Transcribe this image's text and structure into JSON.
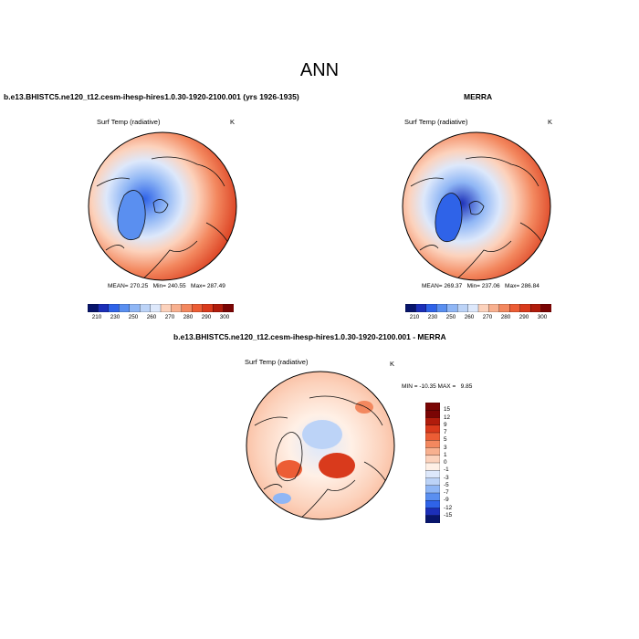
{
  "title": "ANN",
  "colors": {
    "diverging": [
      "#08156b",
      "#1c2fb8",
      "#2f63e8",
      "#5a8ff0",
      "#8fb6f5",
      "#bcd3f7",
      "#dde8fb",
      "#fff0e6",
      "#fcd2bc",
      "#f8b08f",
      "#f3885f",
      "#ec5d35",
      "#d93a1c",
      "#b01c0c",
      "#7a0504"
    ]
  },
  "panel_left": {
    "title": "b.e13.BHISTC5.ne120_t12.cesm-ihesp-hires1.0.30-1920-2100.001 (yrs 1926-1935)",
    "variable": "Surf Temp (radiative)",
    "units": "K",
    "stats": "MEAN= 270.25   Min= 240.55   Max= 287.49",
    "colorbar_ticks": [
      "210",
      "230",
      "250",
      "260",
      "270",
      "280",
      "290",
      "300"
    ]
  },
  "panel_right": {
    "title": "MERRA",
    "variable": "Surf Temp (radiative)",
    "units": "K",
    "stats": "MEAN= 269.37   Min= 237.06   Max= 286.84",
    "colorbar_ticks": [
      "210",
      "230",
      "250",
      "260",
      "270",
      "280",
      "290",
      "300"
    ]
  },
  "panel_diff": {
    "title": "b.e13.BHISTC5.ne120_t12.cesm-ihesp-hires1.0.30-1920-2100.001 - MERRA",
    "variable": "Surf Temp (radiative)",
    "units": "K",
    "stats": "MIN = -10.35 MAX =   9.85",
    "colorbar_ticks": [
      "15",
      "12",
      "9",
      "7",
      "5",
      "3",
      "1",
      "0",
      "-1",
      "-3",
      "-5",
      "-7",
      "-9",
      "-12",
      "-15"
    ]
  }
}
